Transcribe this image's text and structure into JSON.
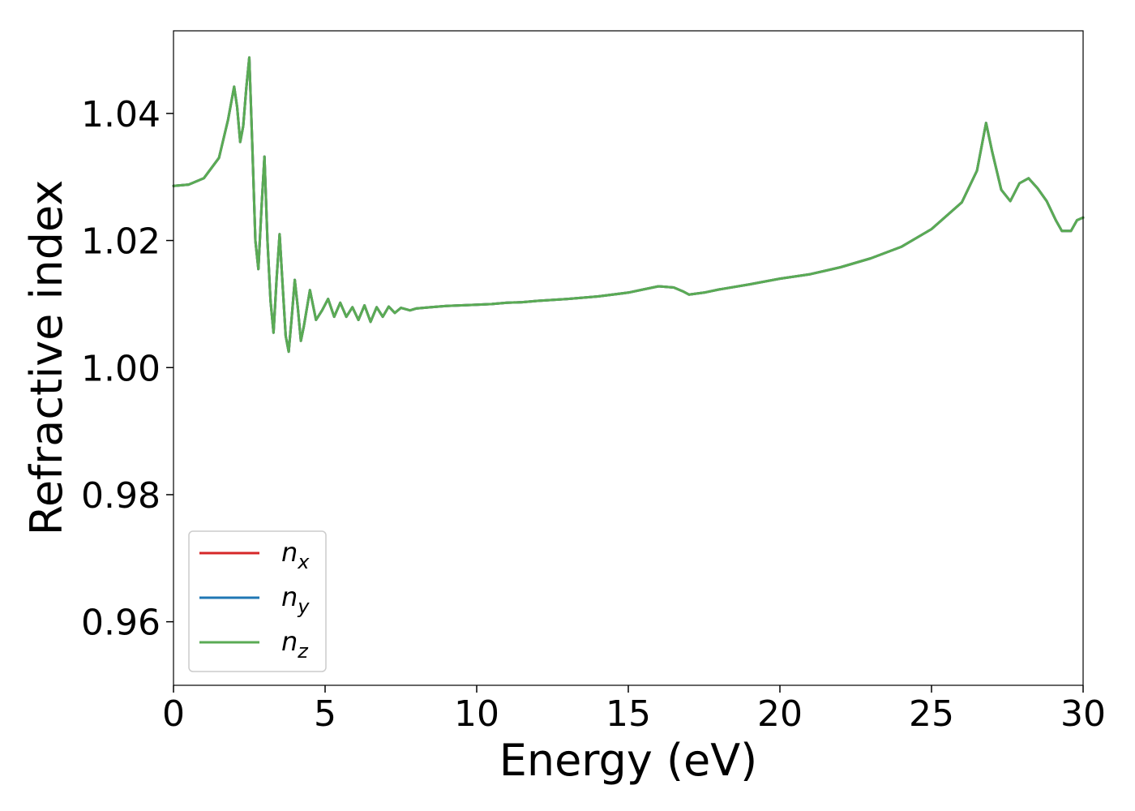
{
  "chart_data": {
    "type": "line",
    "xlabel": "Energy (eV)",
    "ylabel": "Refractive index",
    "xlim": [
      0,
      30
    ],
    "ylim": [
      0.95,
      1.053
    ],
    "xticks": [
      0,
      5,
      10,
      15,
      20,
      25,
      30
    ],
    "yticks": [
      0.96,
      0.98,
      1.0,
      1.02,
      1.04
    ],
    "ytick_labels": [
      "0.96",
      "0.98",
      "1.00",
      "1.02",
      "1.04"
    ],
    "grid": false,
    "legend_placement": "lower-left",
    "colors": {
      "nx": "#d62728",
      "ny": "#1f77b4",
      "nz": "#5aab54"
    },
    "series": [
      {
        "name": "n",
        "sub": "x",
        "color": "#d62728"
      },
      {
        "name": "n",
        "sub": "y",
        "color": "#1f77b4"
      },
      {
        "name": "n",
        "sub": "z",
        "color": "#5aab54"
      }
    ],
    "x": [
      0,
      0.5,
      1.0,
      1.5,
      1.8,
      2.0,
      2.1,
      2.2,
      2.3,
      2.4,
      2.5,
      2.6,
      2.7,
      2.8,
      2.9,
      3.0,
      3.1,
      3.2,
      3.3,
      3.4,
      3.5,
      3.6,
      3.7,
      3.8,
      3.9,
      4.0,
      4.1,
      4.2,
      4.3,
      4.5,
      4.7,
      4.9,
      5.1,
      5.3,
      5.5,
      5.7,
      5.9,
      6.1,
      6.3,
      6.5,
      6.7,
      6.9,
      7.1,
      7.3,
      7.5,
      7.8,
      8.0,
      8.5,
      9.0,
      9.5,
      10.0,
      10.5,
      11.0,
      11.5,
      12.0,
      13.0,
      14.0,
      15.0,
      15.5,
      16.0,
      16.5,
      16.8,
      17.0,
      17.5,
      18.0,
      19.0,
      20.0,
      21.0,
      22.0,
      23.0,
      24.0,
      25.0,
      26.0,
      26.5,
      26.8,
      27.0,
      27.3,
      27.6,
      27.9,
      28.2,
      28.5,
      28.8,
      29.1,
      29.3,
      29.6,
      29.8,
      30.0
    ],
    "values": [
      1.0286,
      1.0288,
      1.0298,
      1.033,
      1.039,
      1.0442,
      1.041,
      1.0355,
      1.038,
      1.044,
      1.0488,
      1.035,
      1.02,
      1.0155,
      1.025,
      1.0332,
      1.02,
      1.0105,
      1.0055,
      1.014,
      1.021,
      1.013,
      1.005,
      1.0025,
      1.008,
      1.0138,
      1.0095,
      1.0042,
      1.0065,
      1.0122,
      1.0075,
      1.009,
      1.0108,
      1.008,
      1.0102,
      1.008,
      1.0095,
      1.0075,
      1.0098,
      1.0072,
      1.0095,
      1.008,
      1.0096,
      1.0086,
      1.0094,
      1.009,
      1.0093,
      1.0095,
      1.0097,
      1.0098,
      1.0099,
      1.01,
      1.0102,
      1.0103,
      1.0105,
      1.0108,
      1.0112,
      1.0118,
      1.0123,
      1.0128,
      1.0126,
      1.012,
      1.0115,
      1.0118,
      1.0123,
      1.0131,
      1.014,
      1.0147,
      1.0158,
      1.0172,
      1.019,
      1.0218,
      1.026,
      1.031,
      1.0385,
      1.034,
      1.028,
      1.0262,
      1.029,
      1.0298,
      1.0282,
      1.0262,
      1.0232,
      1.0215,
      1.0215,
      1.0232,
      1.0236
    ]
  }
}
